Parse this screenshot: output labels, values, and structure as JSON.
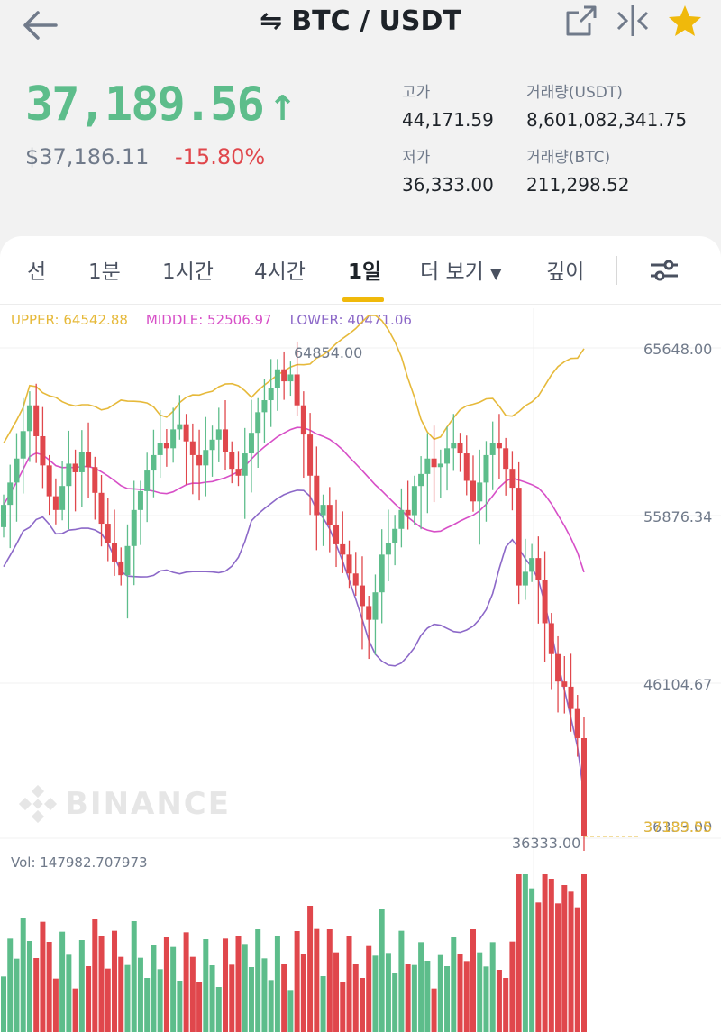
{
  "header": {
    "pair": "BTC / USDT"
  },
  "ticker": {
    "last_price": "37,189.56",
    "arrow": "↑",
    "usd_price": "$37,186.11",
    "change_pct": "-15.80%",
    "high_label": "고가",
    "high_value": "44,171.59",
    "low_label": "저가",
    "low_value": "36,333.00",
    "vol_usdt_label": "거래량(USDT)",
    "vol_usdt_value": "8,601,082,341.75",
    "vol_btc_label": "거래량(BTC)",
    "vol_btc_value": "211,298.52"
  },
  "tabs": [
    "선",
    "1분",
    "1시간",
    "4시간",
    "1일",
    "더 보기",
    "깊이"
  ],
  "active_tab": "1일",
  "indicator": {
    "upper": "UPPER: 64542.88",
    "middle": "MIDDLE: 52506.97",
    "lower": "LOWER: 40471.06"
  },
  "chart_data": {
    "type": "candlestick",
    "y_ticks": [
      "65648.00",
      "55876.34",
      "46104.67"
    ],
    "y_range": [
      36333,
      65648
    ],
    "max_label": "64854.00",
    "min_label": "36333.00",
    "current_price_label": "37189.55",
    "current_price": 37189.55,
    "volume_label": "Vol: 147982.707973",
    "watermark": "BINANCE"
  },
  "colors": {
    "up": "#5dbd8b",
    "down": "#e0474c",
    "upper_band": "#e6b93a",
    "middle_band": "#d74fc7",
    "lower_band": "#8c68c8",
    "accent": "#f0b90b"
  }
}
